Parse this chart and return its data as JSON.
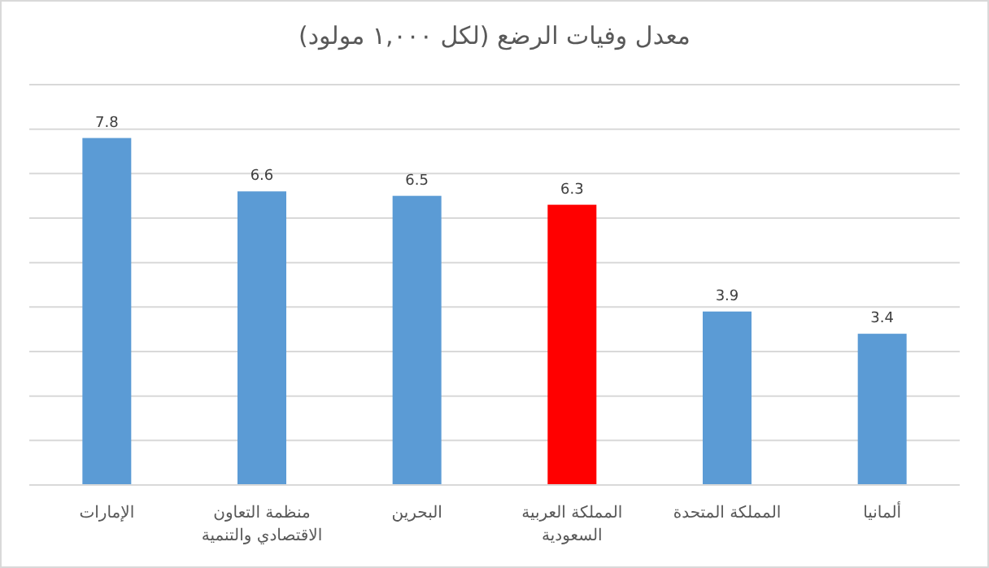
{
  "chart_data": {
    "type": "bar",
    "title": "معدل وفيات الرضع (لكل ١,٠٠٠ مولود)",
    "categories": [
      "الإمارات",
      "منظمة التعاون الاقتصادي والتنمية",
      "البحرين",
      "المملكة العربية السعودية",
      "المملكة المتحدة",
      "ألمانيا"
    ],
    "values": [
      7.8,
      6.6,
      6.5,
      6.3,
      3.9,
      3.4
    ],
    "colors": [
      "#5b9bd5",
      "#5b9bd5",
      "#5b9bd5",
      "#ff0000",
      "#5b9bd5",
      "#5b9bd5"
    ],
    "ylim": [
      0,
      9
    ],
    "yticks": [
      {
        "value": 0,
        "label": null
      },
      {
        "value": 1,
        "label": null
      },
      {
        "value": 2,
        "label": null
      },
      {
        "value": 3,
        "label": null
      },
      {
        "value": 4,
        "label": null
      },
      {
        "value": 5,
        "label": null
      },
      {
        "value": 6,
        "label": null
      },
      {
        "value": 7,
        "label": null
      },
      {
        "value": 8,
        "label": null
      },
      {
        "value": 9,
        "label": null
      }
    ],
    "tick_labels": "x",
    "grid": "y",
    "data_labels": true
  }
}
